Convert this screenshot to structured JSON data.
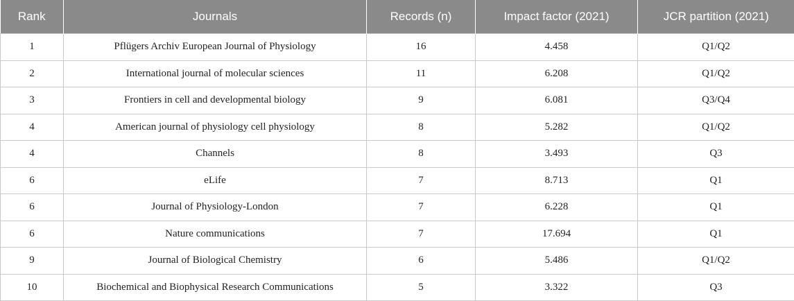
{
  "table": {
    "headers": [
      "Rank",
      "Journals",
      "Records (n)",
      "Impact factor (2021)",
      "JCR partition (2021)"
    ],
    "rows": [
      [
        "1",
        "Pflügers Archiv European Journal of Physiology",
        "16",
        "4.458",
        "Q1/Q2"
      ],
      [
        "2",
        "International journal of molecular sciences",
        "11",
        "6.208",
        "Q1/Q2"
      ],
      [
        "3",
        "Frontiers in cell and developmental biology",
        "9",
        "6.081",
        "Q3/Q4"
      ],
      [
        "4",
        "American journal of physiology cell physiology",
        "8",
        "5.282",
        "Q1/Q2"
      ],
      [
        "4",
        "Channels",
        "8",
        "3.493",
        "Q3"
      ],
      [
        "6",
        "eLife",
        "7",
        "8.713",
        "Q1"
      ],
      [
        "6",
        "Journal of Physiology-London",
        "7",
        "6.228",
        "Q1"
      ],
      [
        "6",
        "Nature communications",
        "7",
        "17.694",
        "Q1"
      ],
      [
        "9",
        "Journal of Biological Chemistry",
        "6",
        "5.486",
        "Q1/Q2"
      ],
      [
        "10",
        "Biochemical and Biophysical Research Communications",
        "5",
        "3.322",
        "Q3"
      ]
    ]
  },
  "colors": {
    "header_background": "#8a8a8a",
    "header_text": "#ffffff",
    "grid_lines": "#c9c9c9"
  }
}
